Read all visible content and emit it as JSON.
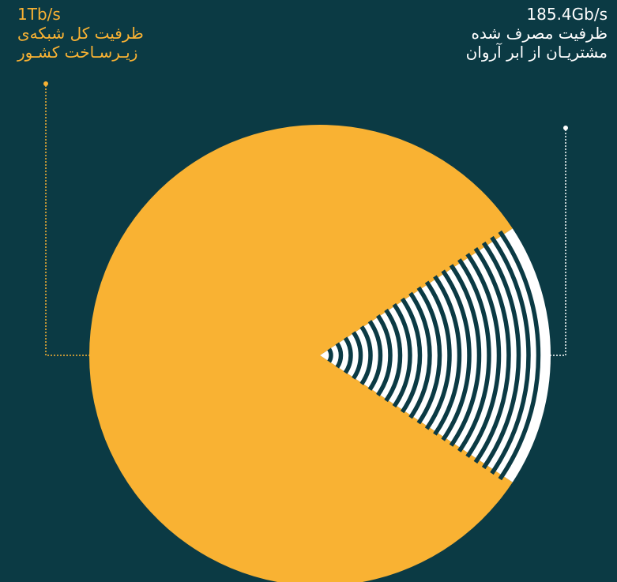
{
  "chart_data": {
    "type": "pie",
    "categories": [
      [
        "ظرفیت کل شبکه‌ی",
        "زیـرسـاخت کشـور"
      ],
      [
        "ظرفیت مصرف شده",
        "مشتریـان از ابر آروان"
      ]
    ],
    "values": [
      1000,
      185.4
    ],
    "value_labels": [
      "1Tb/s",
      "185.4Gb/s"
    ],
    "colors": [
      "#f9b233",
      "#ffffff"
    ]
  }
}
